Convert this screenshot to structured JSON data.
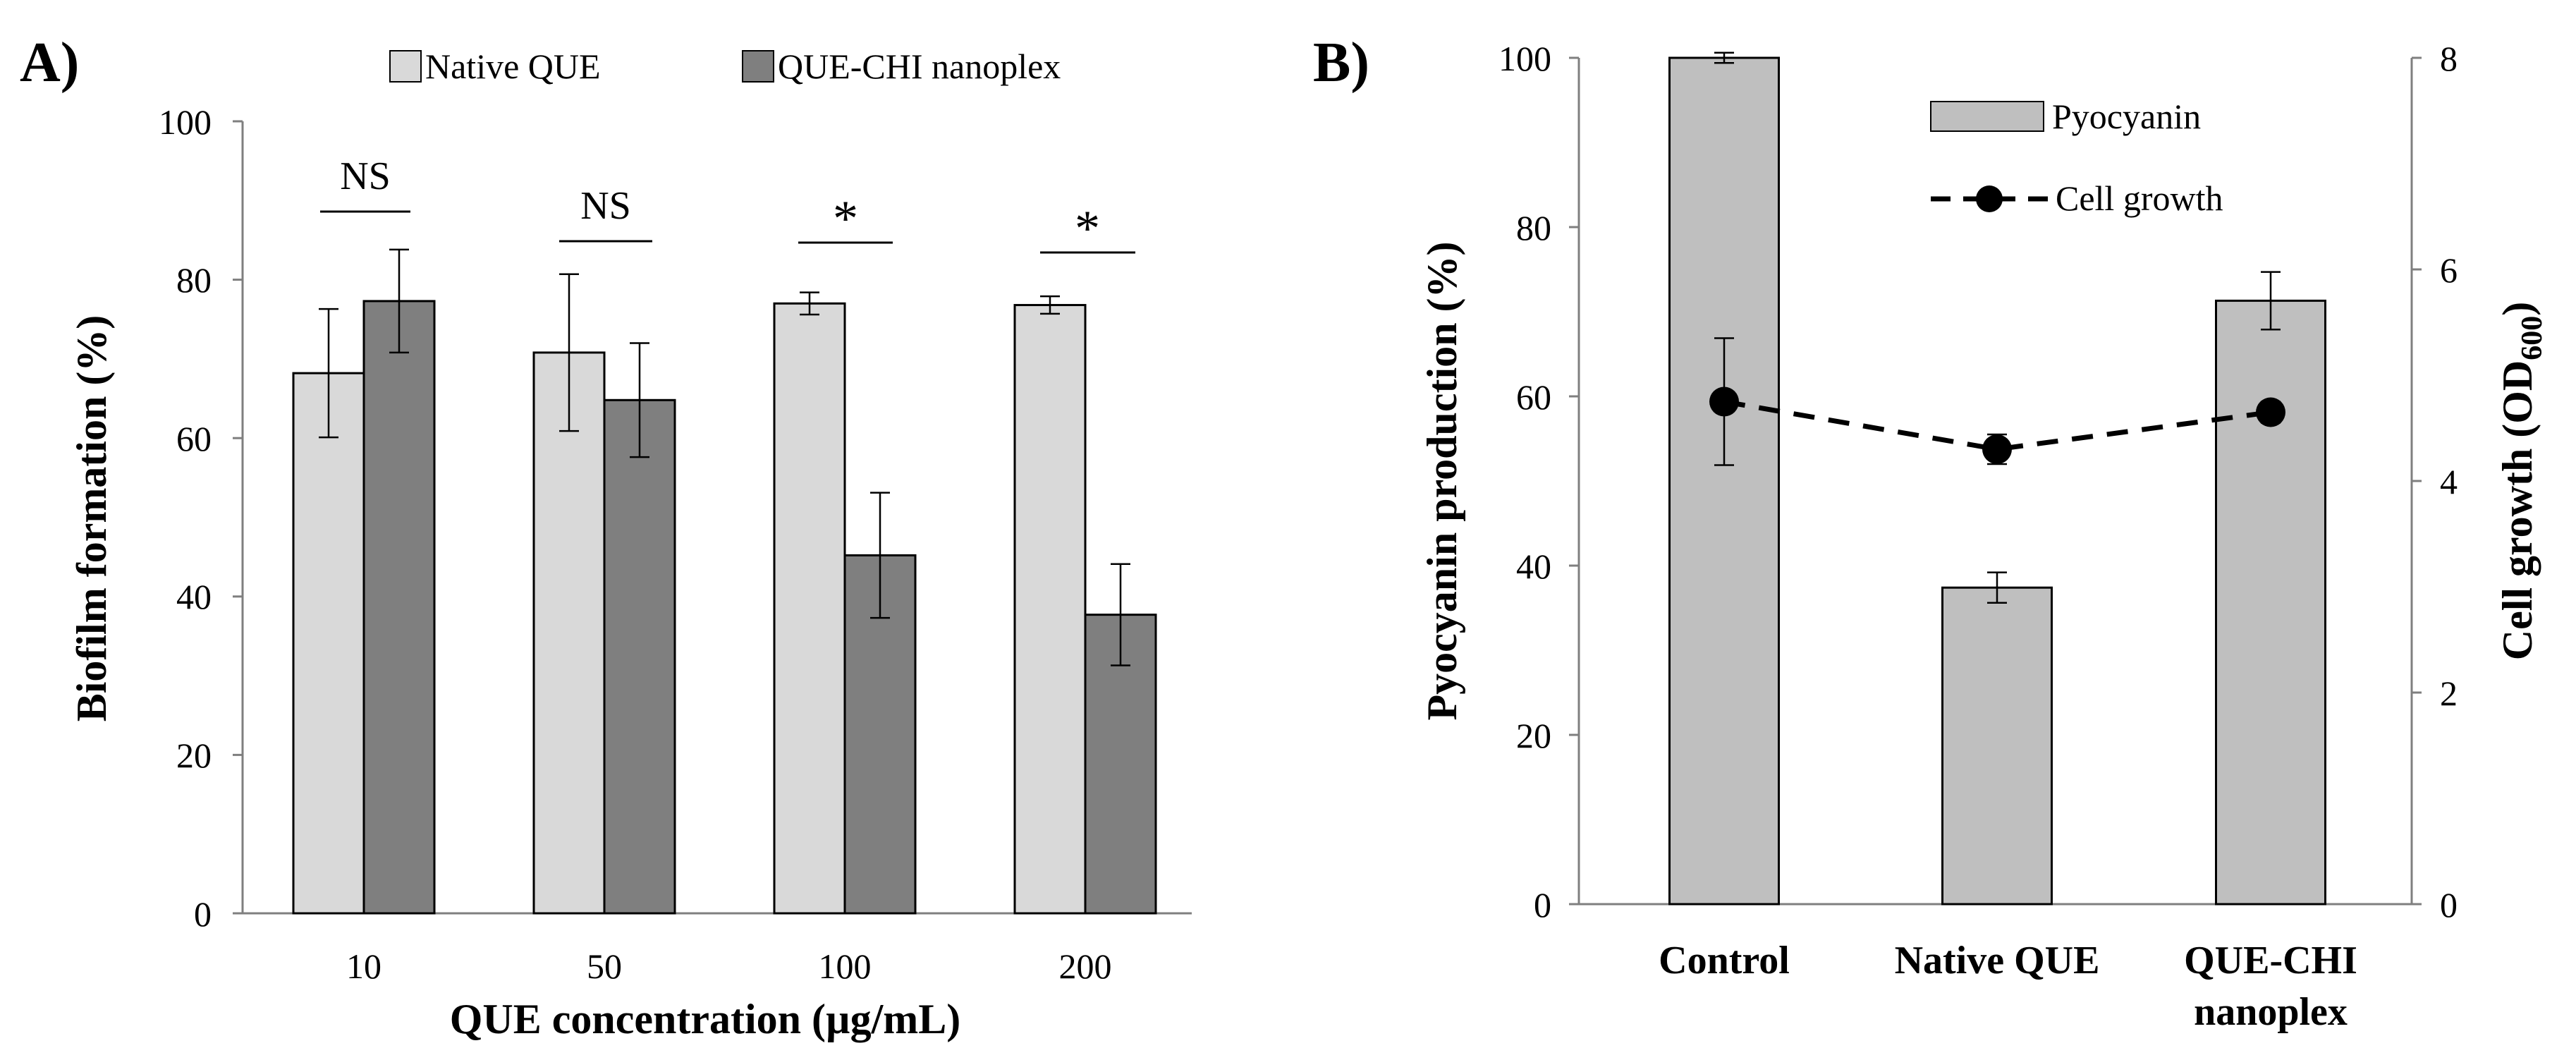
{
  "chart_data": [
    {
      "panel": "A)",
      "type": "bar",
      "xlabel": "QUE concentration (µg/mL)",
      "ylabel": "Biofilm formation (%)",
      "ylim": [
        0,
        100
      ],
      "yticks": [
        "0",
        "20",
        "40",
        "60",
        "80",
        "100"
      ],
      "grid": false,
      "legend_position": "top",
      "categories": [
        "10",
        "50",
        "100",
        "200"
      ],
      "series": [
        {
          "name": "Native QUE",
          "color": "#d9d9d9",
          "values": [
            68.2,
            70.8,
            77.0,
            76.8
          ],
          "errors": [
            8.1,
            9.9,
            1.4,
            1.1
          ]
        },
        {
          "name": "QUE-CHI nanoplex",
          "color": "#7f7f7f",
          "values": [
            77.3,
            64.8,
            45.2,
            37.7
          ],
          "errors": [
            6.5,
            7.2,
            7.9,
            6.4
          ]
        }
      ],
      "annotations": [
        "NS",
        "NS",
        "*",
        "*"
      ]
    },
    {
      "panel": "B)",
      "type": "bar",
      "ylabel": "Pyocyanin production (%)",
      "y2label_main": "Cell growth (OD",
      "y2label_sub": "600",
      "y2label_end": ")",
      "ylim": [
        0,
        100
      ],
      "yticks": [
        "0",
        "20",
        "40",
        "60",
        "80",
        "100"
      ],
      "y2lim": [
        0,
        8
      ],
      "y2ticks": [
        "0",
        "2",
        "4",
        "6",
        "8"
      ],
      "grid": false,
      "legend_position": "top-right",
      "categories": [
        {
          "line1": "Control",
          "line2": ""
        },
        {
          "line1": "Native QUE",
          "line2": ""
        },
        {
          "line1": "QUE-CHI",
          "line2": "nanoplex"
        }
      ],
      "bars": {
        "name": "Pyocyanin",
        "color": "#bfbfbf",
        "values": [
          100.0,
          37.4,
          71.3
        ],
        "errors": [
          0.6,
          1.8,
          3.4
        ]
      },
      "line": {
        "name": "Cell growth",
        "color": "#000000",
        "style": "dashed",
        "values": [
          4.75,
          4.3,
          4.65
        ],
        "errors": [
          0.6,
          0.14,
          0.1
        ]
      }
    }
  ]
}
